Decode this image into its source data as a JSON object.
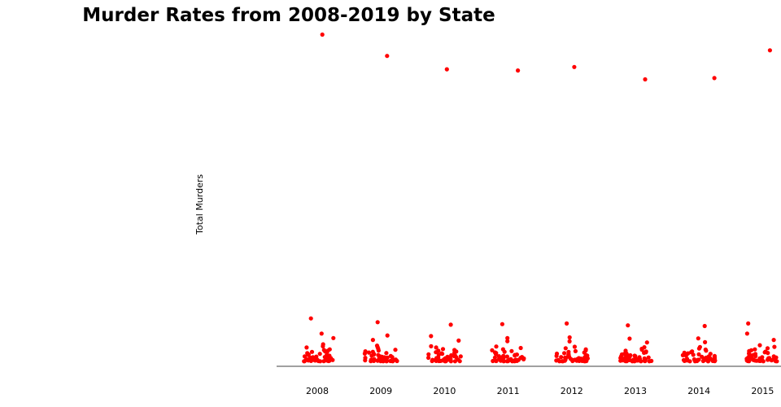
{
  "chart_data": {
    "type": "scatter",
    "title": "Murder Rates from 2008-2019 by State",
    "xlabel": "",
    "ylabel": "Total Murders",
    "categories": [
      "2008",
      "2009",
      "2010",
      "2011",
      "2012",
      "2013",
      "2014",
      "2015"
    ],
    "ylim": [
      0,
      2600
    ],
    "grid": false,
    "legend": "none",
    "marker_color": "#ff0000",
    "baseline_color": "#808080",
    "series": [
      {
        "values_by_category": [
          [
            2584,
            340,
            220,
            185,
            135,
            120,
            110,
            95,
            90,
            85,
            80,
            75,
            70,
            65,
            60,
            55,
            52,
            48,
            45,
            42,
            40,
            38,
            35,
            33,
            30,
            28,
            26,
            24,
            22,
            20,
            18,
            16,
            15,
            14,
            13,
            12,
            11,
            10,
            9,
            8,
            7,
            6,
            5,
            4,
            3,
            3,
            2,
            2,
            1,
            1
          ],
          [
            2415,
            310,
            205,
            170,
            125,
            112,
            100,
            92,
            86,
            80,
            76,
            70,
            66,
            62,
            58,
            54,
            50,
            46,
            43,
            40,
            37,
            34,
            32,
            30,
            28,
            25,
            23,
            21,
            19,
            18,
            16,
            15,
            13,
            12,
            11,
            10,
            9,
            8,
            7,
            6,
            5,
            4,
            4,
            3,
            3,
            2,
            2,
            1,
            1,
            1
          ],
          [
            2310,
            290,
            200,
            165,
            120,
            110,
            98,
            90,
            84,
            78,
            73,
            68,
            64,
            60,
            56,
            52,
            48,
            45,
            42,
            39,
            36,
            33,
            31,
            29,
            27,
            25,
            23,
            21,
            19,
            17,
            16,
            14,
            13,
            12,
            11,
            10,
            9,
            8,
            7,
            6,
            5,
            4,
            4,
            3,
            3,
            2,
            2,
            1,
            1,
            1
          ],
          [
            2300,
            295,
            185,
            160,
            118,
            106,
            96,
            88,
            82,
            76,
            71,
            66,
            62,
            58,
            54,
            51,
            47,
            44,
            41,
            38,
            35,
            32,
            30,
            28,
            26,
            24,
            22,
            20,
            18,
            17,
            15,
            14,
            13,
            12,
            11,
            10,
            9,
            8,
            7,
            6,
            5,
            4,
            4,
            3,
            3,
            2,
            2,
            1,
            1,
            1
          ],
          [
            2328,
            300,
            190,
            158,
            116,
            104,
            95,
            87,
            81,
            75,
            70,
            65,
            61,
            57,
            53,
            50,
            46,
            43,
            40,
            37,
            34,
            32,
            30,
            28,
            26,
            24,
            22,
            20,
            18,
            16,
            15,
            14,
            13,
            12,
            11,
            10,
            9,
            8,
            7,
            6,
            5,
            4,
            4,
            3,
            3,
            2,
            2,
            1,
            1,
            1
          ],
          [
            2230,
            285,
            180,
            150,
            112,
            100,
            92,
            84,
            78,
            72,
            68,
            63,
            59,
            55,
            52,
            48,
            45,
            42,
            39,
            36,
            33,
            31,
            29,
            27,
            25,
            23,
            21,
            19,
            17,
            16,
            14,
            13,
            12,
            11,
            10,
            9,
            8,
            7,
            6,
            5,
            5,
            4,
            3,
            3,
            2,
            2,
            1,
            1,
            1,
            1
          ],
          [
            2240,
            280,
            182,
            152,
            114,
            102,
            93,
            85,
            79,
            73,
            69,
            64,
            60,
            56,
            52,
            49,
            46,
            43,
            40,
            37,
            34,
            32,
            30,
            28,
            26,
            24,
            22,
            20,
            18,
            16,
            15,
            14,
            13,
            12,
            11,
            10,
            9,
            8,
            7,
            6,
            5,
            4,
            4,
            3,
            3,
            2,
            2,
            1,
            1,
            1
          ],
          [
            2460,
            300,
            220,
            170,
            128,
            115,
            104,
            95,
            88,
            82,
            77,
            72,
            67,
            63,
            59,
            55,
            51,
            48,
            45,
            42,
            39,
            36,
            33,
            31,
            29,
            27,
            25,
            23,
            21,
            19,
            17,
            16,
            14,
            13,
            12,
            11,
            10,
            9,
            8,
            7,
            6,
            5,
            4,
            4,
            3,
            3,
            2,
            2,
            1,
            1
          ]
        ]
      }
    ]
  }
}
